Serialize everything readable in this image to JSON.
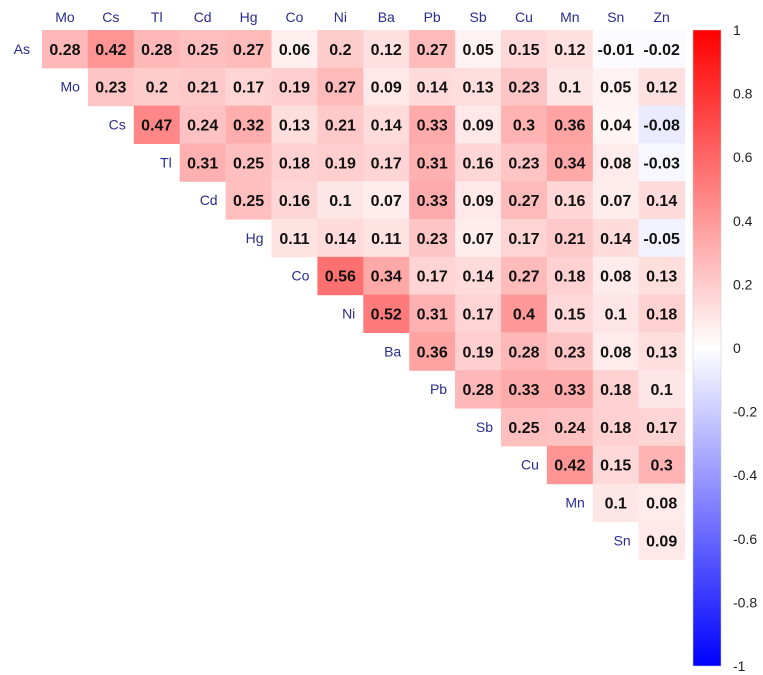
{
  "chart_data": {
    "type": "heatmap",
    "title": "",
    "subtitle": "",
    "columns": [
      "Mo",
      "Cs",
      "Tl",
      "Cd",
      "Hg",
      "Co",
      "Ni",
      "Ba",
      "Pb",
      "Sb",
      "Cu",
      "Mn",
      "Sn",
      "Zn"
    ],
    "rows": [
      {
        "label": "As",
        "values": [
          0.28,
          0.42,
          0.28,
          0.25,
          0.27,
          0.06,
          0.2,
          0.12,
          0.27,
          0.05,
          0.15,
          0.12,
          -0.01,
          -0.02
        ]
      },
      {
        "label": "Mo",
        "values": [
          null,
          0.23,
          0.2,
          0.21,
          0.17,
          0.19,
          0.27,
          0.09,
          0.14,
          0.13,
          0.23,
          0.1,
          0.05,
          0.12
        ]
      },
      {
        "label": "Cs",
        "values": [
          null,
          null,
          0.47,
          0.24,
          0.32,
          0.13,
          0.21,
          0.14,
          0.33,
          0.09,
          0.3,
          0.36,
          0.04,
          -0.08
        ]
      },
      {
        "label": "Tl",
        "values": [
          null,
          null,
          null,
          0.31,
          0.25,
          0.18,
          0.19,
          0.17,
          0.31,
          0.16,
          0.23,
          0.34,
          0.08,
          -0.03
        ]
      },
      {
        "label": "Cd",
        "values": [
          null,
          null,
          null,
          null,
          0.25,
          0.16,
          0.1,
          0.07,
          0.33,
          0.09,
          0.27,
          0.16,
          0.07,
          0.14
        ]
      },
      {
        "label": "Hg",
        "values": [
          null,
          null,
          null,
          null,
          null,
          0.11,
          0.14,
          0.11,
          0.23,
          0.07,
          0.17,
          0.21,
          0.14,
          -0.05
        ]
      },
      {
        "label": "Co",
        "values": [
          null,
          null,
          null,
          null,
          null,
          null,
          0.56,
          0.34,
          0.17,
          0.14,
          0.27,
          0.18,
          0.08,
          0.13
        ]
      },
      {
        "label": "Ni",
        "values": [
          null,
          null,
          null,
          null,
          null,
          null,
          null,
          0.52,
          0.31,
          0.17,
          0.4,
          0.15,
          0.1,
          0.18
        ]
      },
      {
        "label": "Ba",
        "values": [
          null,
          null,
          null,
          null,
          null,
          null,
          null,
          null,
          0.36,
          0.19,
          0.28,
          0.23,
          0.08,
          0.13
        ]
      },
      {
        "label": "Pb",
        "values": [
          null,
          null,
          null,
          null,
          null,
          null,
          null,
          null,
          null,
          0.28,
          0.33,
          0.33,
          0.18,
          0.1
        ]
      },
      {
        "label": "Sb",
        "values": [
          null,
          null,
          null,
          null,
          null,
          null,
          null,
          null,
          null,
          null,
          0.25,
          0.24,
          0.18,
          0.17
        ]
      },
      {
        "label": "Cu",
        "values": [
          null,
          null,
          null,
          null,
          null,
          null,
          null,
          null,
          null,
          null,
          null,
          0.42,
          0.15,
          0.3
        ]
      },
      {
        "label": "Mn",
        "values": [
          null,
          null,
          null,
          null,
          null,
          null,
          null,
          null,
          null,
          null,
          null,
          null,
          0.1,
          0.08
        ]
      },
      {
        "label": "Sn",
        "values": [
          null,
          null,
          null,
          null,
          null,
          null,
          null,
          null,
          null,
          null,
          null,
          null,
          null,
          0.09
        ]
      }
    ],
    "colorscale": {
      "min": -1,
      "max": 1,
      "low_color": "#0000FF",
      "mid_color": "#FFFFFF",
      "high_color": "#FF0000",
      "ticks": [
        "1",
        "0.8",
        "0.6",
        "0.4",
        "0.2",
        "0",
        "-0.2",
        "-0.4",
        "-0.6",
        "-0.8",
        "-1"
      ]
    },
    "legend_placement": "right",
    "colors": {
      "label_text": "#2b2b8f",
      "value_text": "#111111"
    }
  }
}
